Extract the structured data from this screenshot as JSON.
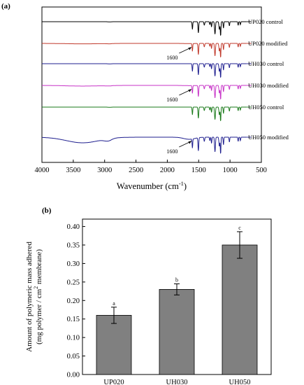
{
  "panel_a_label": "(a)",
  "panel_b_label": "(b)",
  "chart_data": [
    {
      "type": "line",
      "xlabel_main": "Wavenumber (cm",
      "xlabel_sup": "-1",
      "xlabel_end": ")",
      "xlim": [
        4000,
        500
      ],
      "xticks": [
        4000,
        3500,
        3000,
        2500,
        2000,
        1500,
        1000,
        500
      ],
      "series": [
        {
          "name": "UP020 control",
          "color": "#000000",
          "broad": 0.0,
          "annotation": ""
        },
        {
          "name": "UP020 modified",
          "color": "#c0392b",
          "broad": 0.08,
          "annotation": "1600"
        },
        {
          "name": "UH030 control",
          "color": "#1f1f8f",
          "broad": 0.0,
          "annotation": ""
        },
        {
          "name": "UH030 modified",
          "color": "#c733c7",
          "broad": 0.12,
          "annotation": "1600"
        },
        {
          "name": "UH050 control",
          "color": "#1a7a1a",
          "broad": 0.0,
          "annotation": ""
        },
        {
          "name": "UH050 modified",
          "color": "#1f1f8f",
          "broad": 1.0,
          "annotation": "1600"
        }
      ]
    },
    {
      "type": "bar",
      "categories": [
        "UP020",
        "UH030",
        "UH050"
      ],
      "values": [
        0.16,
        0.23,
        0.35
      ],
      "errors": [
        0.022,
        0.015,
        0.036
      ],
      "significance": [
        "a",
        "b",
        "c"
      ],
      "bar_color": "#808080",
      "ylim": [
        0.0,
        0.42
      ],
      "yticks": [
        "0.00",
        "0.05",
        "0.10",
        "0.15",
        "0.20",
        "0.25",
        "0.30",
        "0.35",
        "0.40"
      ],
      "ylabel_line1": "Amount of polymeric mass adhered",
      "ylabel_line2_a": "(mg polymer / cm",
      "ylabel_line2_sup": "2",
      "ylabel_line2_b": " membrane)"
    }
  ]
}
